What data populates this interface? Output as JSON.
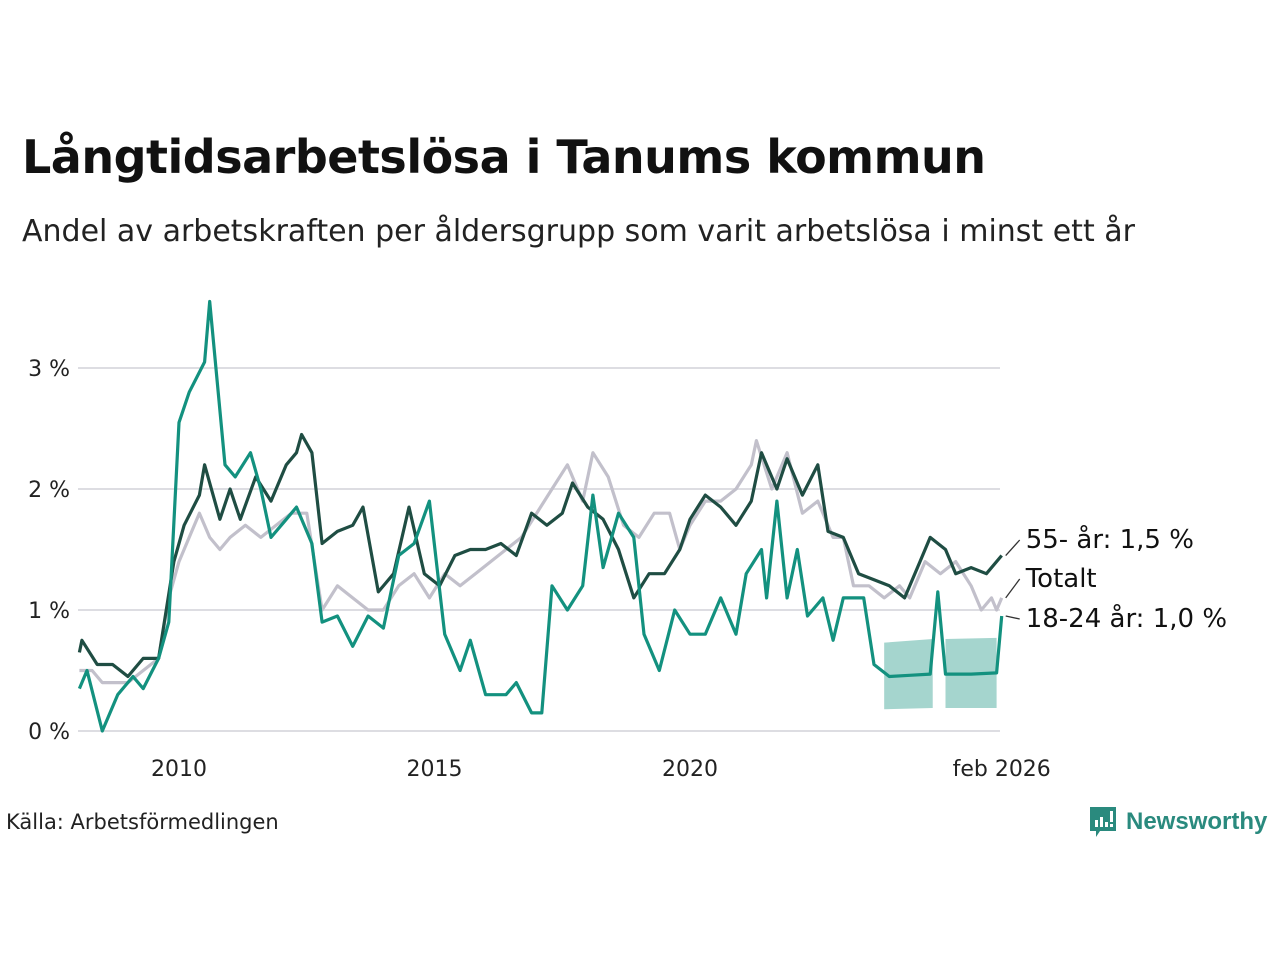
{
  "header": {
    "title": "Långtidsarbetslösa i Tanums kommun",
    "subtitle": "Andel av arbetskraften per åldersgrupp som varit arbetslösa i minst ett år"
  },
  "footer": {
    "source": "Källa: Arbetsförmedlingen",
    "brand": "Newsworthy"
  },
  "chart_data": {
    "type": "line",
    "title": "Långtidsarbetslösa i Tanums kommun",
    "xlabel": "",
    "ylabel": "",
    "xlim": [
      2008.05,
      2026.1
    ],
    "ylim": [
      0,
      3.6
    ],
    "grid": true,
    "y_ticks": [
      {
        "v": 0,
        "label": "0 %"
      },
      {
        "v": 1,
        "label": "1 %"
      },
      {
        "v": 2,
        "label": "2 %"
      },
      {
        "v": 3,
        "label": "3 %"
      }
    ],
    "x_ticks": [
      {
        "v": 2010,
        "label": "2010"
      },
      {
        "v": 2015,
        "label": "2015"
      },
      {
        "v": 2020,
        "label": "2020"
      },
      {
        "v": 2026.1,
        "label": "feb 2026"
      }
    ],
    "series": [
      {
        "name": "Totalt",
        "label": "Totalt",
        "color": "#c2c0cb",
        "points": [
          [
            2008.05,
            0.5
          ],
          [
            2008.3,
            0.5
          ],
          [
            2008.5,
            0.4
          ],
          [
            2009.0,
            0.4
          ],
          [
            2009.3,
            0.5
          ],
          [
            2009.6,
            0.6
          ],
          [
            2009.8,
            1.1
          ],
          [
            2010.0,
            1.4
          ],
          [
            2010.2,
            1.6
          ],
          [
            2010.4,
            1.8
          ],
          [
            2010.6,
            1.6
          ],
          [
            2010.8,
            1.5
          ],
          [
            2011.0,
            1.6
          ],
          [
            2011.3,
            1.7
          ],
          [
            2011.6,
            1.6
          ],
          [
            2011.9,
            1.7
          ],
          [
            2012.2,
            1.8
          ],
          [
            2012.5,
            1.8
          ],
          [
            2012.8,
            1.0
          ],
          [
            2013.1,
            1.2
          ],
          [
            2013.4,
            1.1
          ],
          [
            2013.7,
            1.0
          ],
          [
            2014.0,
            1.0
          ],
          [
            2014.3,
            1.2
          ],
          [
            2014.6,
            1.3
          ],
          [
            2014.9,
            1.1
          ],
          [
            2015.2,
            1.3
          ],
          [
            2015.5,
            1.2
          ],
          [
            2015.8,
            1.3
          ],
          [
            2016.1,
            1.4
          ],
          [
            2016.4,
            1.5
          ],
          [
            2016.7,
            1.6
          ],
          [
            2017.0,
            1.8
          ],
          [
            2017.3,
            2.0
          ],
          [
            2017.6,
            2.2
          ],
          [
            2017.9,
            1.9
          ],
          [
            2018.1,
            2.3
          ],
          [
            2018.4,
            2.1
          ],
          [
            2018.7,
            1.7
          ],
          [
            2019.0,
            1.6
          ],
          [
            2019.3,
            1.8
          ],
          [
            2019.6,
            1.8
          ],
          [
            2019.8,
            1.5
          ],
          [
            2020.0,
            1.7
          ],
          [
            2020.3,
            1.9
          ],
          [
            2020.6,
            1.9
          ],
          [
            2020.9,
            2.0
          ],
          [
            2021.2,
            2.2
          ],
          [
            2021.3,
            2.4
          ],
          [
            2021.6,
            2.0
          ],
          [
            2021.9,
            2.3
          ],
          [
            2022.2,
            1.8
          ],
          [
            2022.5,
            1.9
          ],
          [
            2022.8,
            1.6
          ],
          [
            2023.0,
            1.6
          ],
          [
            2023.2,
            1.2
          ],
          [
            2023.5,
            1.2
          ],
          [
            2023.8,
            1.1
          ],
          [
            2024.1,
            1.2
          ],
          [
            2024.3,
            1.1
          ],
          [
            2024.6,
            1.4
          ],
          [
            2024.9,
            1.3
          ],
          [
            2025.2,
            1.4
          ],
          [
            2025.5,
            1.2
          ],
          [
            2025.7,
            1.0
          ],
          [
            2025.9,
            1.1
          ],
          [
            2026.0,
            1.0
          ],
          [
            2026.1,
            1.1
          ]
        ]
      },
      {
        "name": "55- år",
        "label": "55- år: 1,5 %",
        "color": "#1f4d43",
        "points": [
          [
            2008.05,
            0.65
          ],
          [
            2008.1,
            0.75
          ],
          [
            2008.4,
            0.55
          ],
          [
            2008.7,
            0.55
          ],
          [
            2009.0,
            0.45
          ],
          [
            2009.3,
            0.6
          ],
          [
            2009.6,
            0.6
          ],
          [
            2009.9,
            1.4
          ],
          [
            2010.1,
            1.7
          ],
          [
            2010.4,
            1.95
          ],
          [
            2010.5,
            2.2
          ],
          [
            2010.8,
            1.75
          ],
          [
            2011.0,
            2.0
          ],
          [
            2011.2,
            1.75
          ],
          [
            2011.5,
            2.1
          ],
          [
            2011.8,
            1.9
          ],
          [
            2012.1,
            2.2
          ],
          [
            2012.3,
            2.3
          ],
          [
            2012.4,
            2.45
          ],
          [
            2012.6,
            2.3
          ],
          [
            2012.8,
            1.55
          ],
          [
            2013.1,
            1.65
          ],
          [
            2013.4,
            1.7
          ],
          [
            2013.6,
            1.85
          ],
          [
            2013.9,
            1.15
          ],
          [
            2014.2,
            1.3
          ],
          [
            2014.5,
            1.85
          ],
          [
            2014.8,
            1.3
          ],
          [
            2015.1,
            1.2
          ],
          [
            2015.4,
            1.45
          ],
          [
            2015.7,
            1.5
          ],
          [
            2016.0,
            1.5
          ],
          [
            2016.3,
            1.55
          ],
          [
            2016.6,
            1.45
          ],
          [
            2016.9,
            1.8
          ],
          [
            2017.2,
            1.7
          ],
          [
            2017.5,
            1.8
          ],
          [
            2017.7,
            2.05
          ],
          [
            2018.0,
            1.85
          ],
          [
            2018.3,
            1.75
          ],
          [
            2018.6,
            1.5
          ],
          [
            2018.9,
            1.1
          ],
          [
            2019.2,
            1.3
          ],
          [
            2019.5,
            1.3
          ],
          [
            2019.8,
            1.5
          ],
          [
            2020.0,
            1.75
          ],
          [
            2020.3,
            1.95
          ],
          [
            2020.6,
            1.85
          ],
          [
            2020.9,
            1.7
          ],
          [
            2021.2,
            1.9
          ],
          [
            2021.4,
            2.3
          ],
          [
            2021.7,
            2.0
          ],
          [
            2021.9,
            2.25
          ],
          [
            2022.2,
            1.95
          ],
          [
            2022.5,
            2.2
          ],
          [
            2022.7,
            1.65
          ],
          [
            2023.0,
            1.6
          ],
          [
            2023.3,
            1.3
          ],
          [
            2023.6,
            1.25
          ],
          [
            2023.9,
            1.2
          ],
          [
            2024.2,
            1.1
          ],
          [
            2024.5,
            1.4
          ],
          [
            2024.7,
            1.6
          ],
          [
            2025.0,
            1.5
          ],
          [
            2025.2,
            1.3
          ],
          [
            2025.5,
            1.35
          ],
          [
            2025.8,
            1.3
          ],
          [
            2026.1,
            1.45
          ]
        ]
      },
      {
        "name": "18-24 år",
        "label": "18-24 år: 1,0 %",
        "color": "#13917f",
        "points": [
          [
            2008.05,
            0.35
          ],
          [
            2008.2,
            0.5
          ],
          [
            2008.5,
            0.0
          ],
          [
            2008.8,
            0.3
          ],
          [
            2009.1,
            0.45
          ],
          [
            2009.3,
            0.35
          ],
          [
            2009.6,
            0.6
          ],
          [
            2009.8,
            0.9
          ],
          [
            2010.0,
            2.55
          ],
          [
            2010.2,
            2.8
          ],
          [
            2010.5,
            3.05
          ],
          [
            2010.6,
            3.55
          ],
          [
            2010.9,
            2.2
          ],
          [
            2011.1,
            2.1
          ],
          [
            2011.4,
            2.3
          ],
          [
            2011.6,
            2.0
          ],
          [
            2011.8,
            1.6
          ],
          [
            2012.1,
            1.75
          ],
          [
            2012.3,
            1.85
          ],
          [
            2012.6,
            1.55
          ],
          [
            2012.8,
            0.9
          ],
          [
            2013.1,
            0.95
          ],
          [
            2013.4,
            0.7
          ],
          [
            2013.7,
            0.95
          ],
          [
            2014.0,
            0.85
          ],
          [
            2014.3,
            1.45
          ],
          [
            2014.6,
            1.55
          ],
          [
            2014.9,
            1.9
          ],
          [
            2015.2,
            0.8
          ],
          [
            2015.5,
            0.5
          ],
          [
            2015.7,
            0.75
          ],
          [
            2016.0,
            0.3
          ],
          [
            2016.4,
            0.3
          ],
          [
            2016.6,
            0.4
          ],
          [
            2016.9,
            0.15
          ],
          [
            2017.1,
            0.15
          ],
          [
            2017.3,
            1.2
          ],
          [
            2017.6,
            1.0
          ],
          [
            2017.9,
            1.2
          ],
          [
            2018.1,
            1.95
          ],
          [
            2018.3,
            1.35
          ],
          [
            2018.6,
            1.8
          ],
          [
            2018.9,
            1.6
          ],
          [
            2019.1,
            0.8
          ],
          [
            2019.4,
            0.5
          ],
          [
            2019.7,
            1.0
          ],
          [
            2020.0,
            0.8
          ],
          [
            2020.3,
            0.8
          ],
          [
            2020.6,
            1.1
          ],
          [
            2020.9,
            0.8
          ],
          [
            2021.1,
            1.3
          ],
          [
            2021.4,
            1.5
          ],
          [
            2021.5,
            1.1
          ],
          [
            2021.7,
            1.9
          ],
          [
            2021.9,
            1.1
          ],
          [
            2022.1,
            1.5
          ],
          [
            2022.3,
            0.95
          ],
          [
            2022.6,
            1.1
          ],
          [
            2022.8,
            0.75
          ],
          [
            2023.0,
            1.1
          ],
          [
            2023.4,
            1.1
          ],
          [
            2023.6,
            0.55
          ],
          [
            2023.9,
            0.45
          ],
          [
            2024.3,
            0.46
          ],
          [
            2024.7,
            0.47
          ],
          [
            2024.85,
            1.15
          ],
          [
            2025.0,
            0.47
          ],
          [
            2025.5,
            0.47
          ],
          [
            2026.0,
            0.48
          ],
          [
            2026.1,
            0.95
          ]
        ],
        "uncertainty_bands": [
          {
            "x": [
              2023.8,
              2024.75
            ],
            "lower": [
              0.18,
              0.19
            ],
            "upper": [
              0.73,
              0.76
            ]
          },
          {
            "x": [
              2025.0,
              2026.0
            ],
            "lower": [
              0.19,
              0.19
            ],
            "upper": [
              0.76,
              0.77
            ]
          }
        ]
      }
    ]
  }
}
